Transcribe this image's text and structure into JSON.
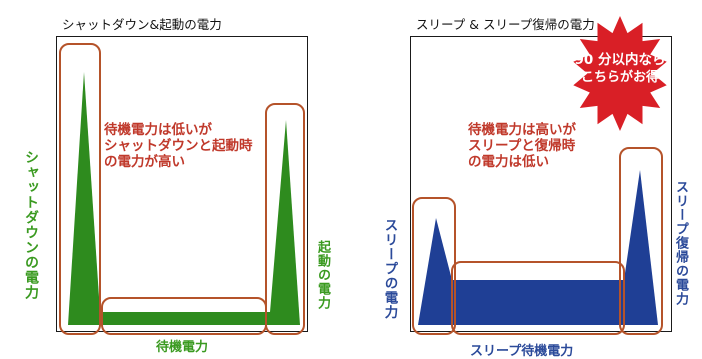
{
  "left_panel": {
    "title": "シャットダウン&起動の電力",
    "note": [
      "待機電力は低いが",
      "シャットダウンと起動時",
      "の電力が高い"
    ],
    "label_left": "シャットダウンの電力",
    "label_right": "起動の電力",
    "label_bottom": "待機電力",
    "fill_color": "#2e8b1e",
    "text_color": "#3a9a20"
  },
  "right_panel": {
    "title": "スリープ & スリープ復帰の電力",
    "note": [
      "待機電力は高いが",
      "スリープと復帰時",
      "の電力は低い"
    ],
    "label_left": "スリープの電力",
    "label_right": "スリープ復帰の電力",
    "label_bottom": "スリープ待機電力",
    "fill_color": "#1f3f95",
    "text_color": "#2b4a9a"
  },
  "badge": {
    "line1": "90 分以内なら",
    "line2": "こちらがお得",
    "color": "#d91f26"
  },
  "colors": {
    "outline": "#b5532a",
    "note_text": "#c0392b"
  }
}
